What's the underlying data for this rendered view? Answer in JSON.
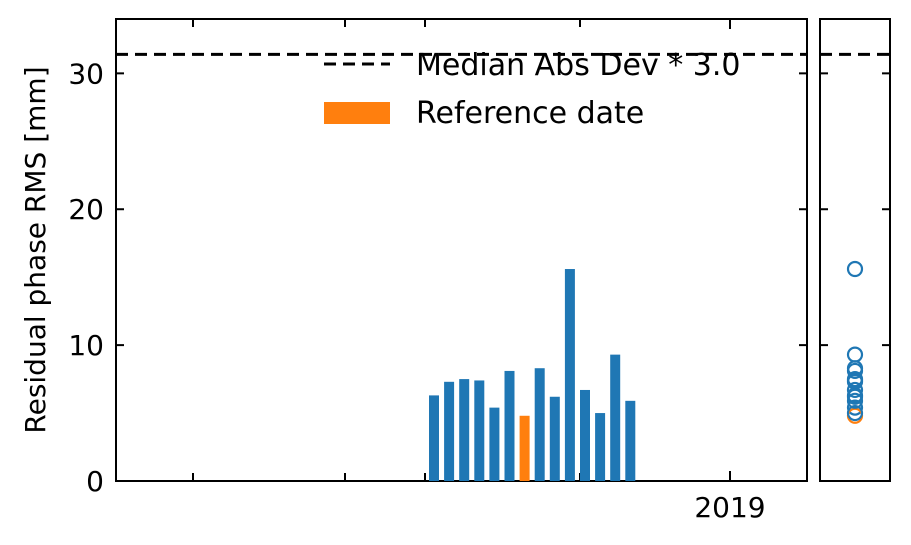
{
  "chart_data": {
    "type": "bar",
    "ylabel": "Residual phase RMS [mm]",
    "xlabel": "",
    "x_tick_labels": [
      "2019"
    ],
    "y_ticks": [
      0,
      10,
      20,
      30
    ],
    "ylim": [
      0,
      34
    ],
    "grid": false,
    "legend": {
      "placement": "top-right",
      "entries": [
        {
          "label": "Median Abs Dev * 3.0",
          "style": "dashed-line",
          "color": "#000000"
        },
        {
          "label": "Reference date",
          "style": "bar",
          "color": "#ff7f0e"
        }
      ]
    },
    "threshold": 31.4,
    "bars": [
      {
        "value": 6.3,
        "reference": false
      },
      {
        "value": 7.3,
        "reference": false
      },
      {
        "value": 7.5,
        "reference": false
      },
      {
        "value": 7.4,
        "reference": false
      },
      {
        "value": 5.4,
        "reference": false
      },
      {
        "value": 8.1,
        "reference": false
      },
      {
        "value": 4.8,
        "reference": true
      },
      {
        "value": 8.3,
        "reference": false
      },
      {
        "value": 6.2,
        "reference": false
      },
      {
        "value": 15.6,
        "reference": false
      },
      {
        "value": 6.7,
        "reference": false
      },
      {
        "value": 5.0,
        "reference": false
      },
      {
        "value": 9.3,
        "reference": false
      },
      {
        "value": 5.9,
        "reference": false
      }
    ],
    "colors": {
      "bar": "#1f77b4",
      "reference": "#ff7f0e",
      "threshold": "#000000"
    }
  }
}
